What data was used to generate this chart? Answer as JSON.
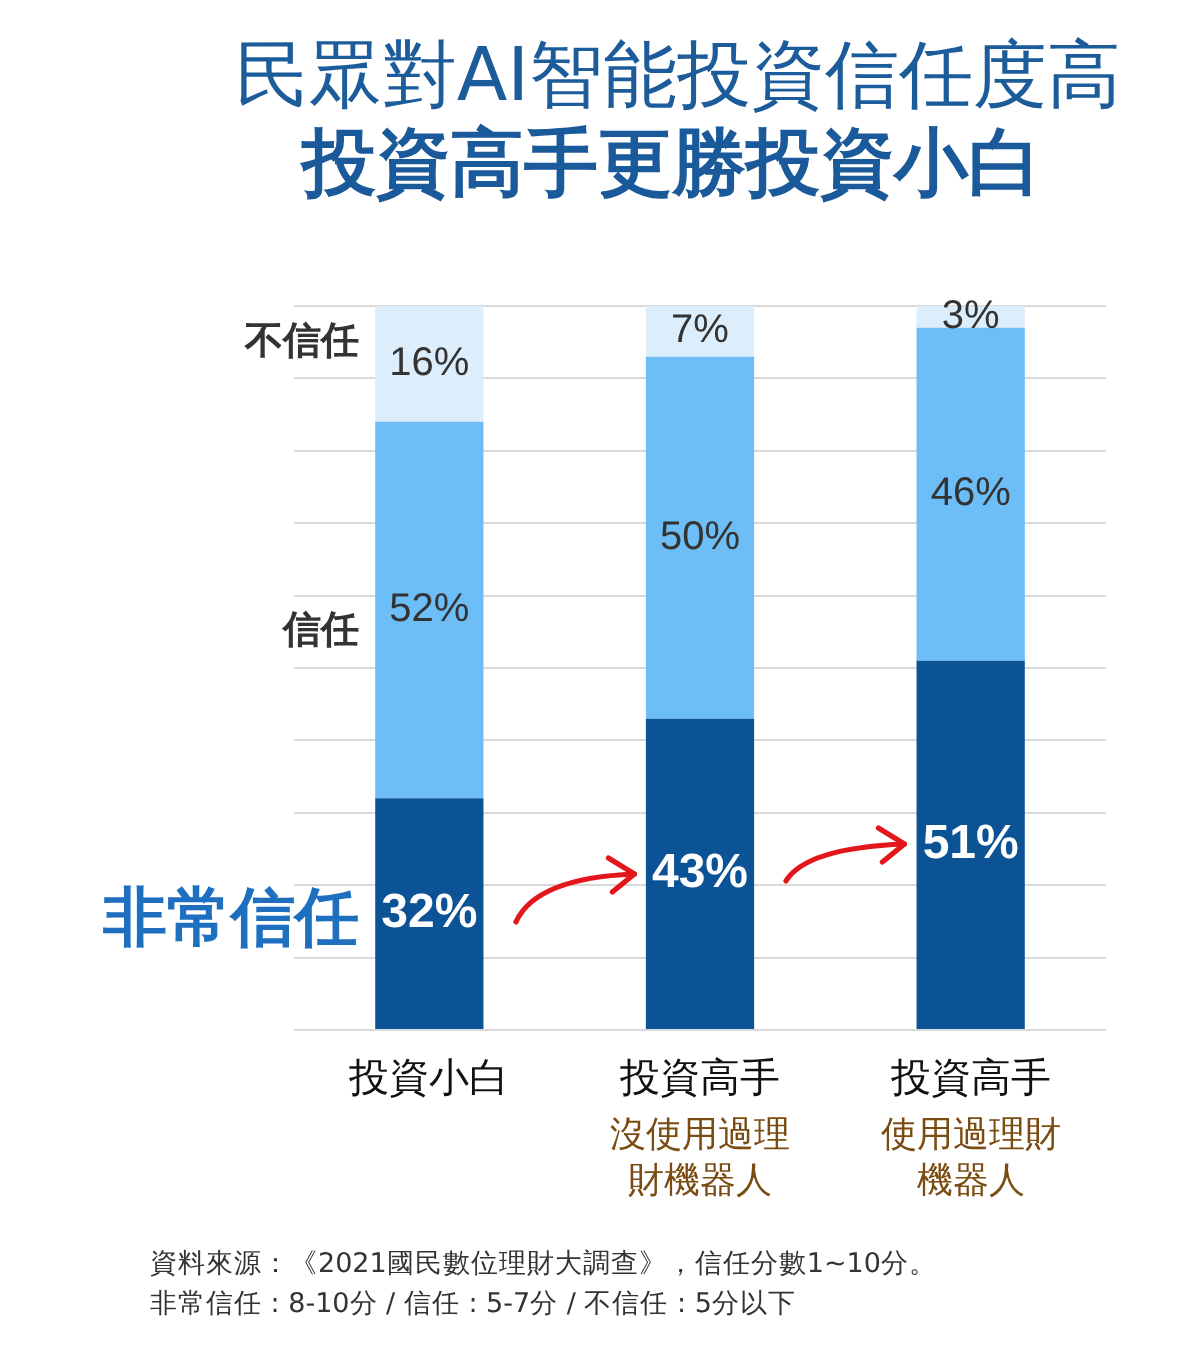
{
  "chart_data": {
    "type": "bar",
    "title": "民眾對AI智能投資信任度高",
    "subtitle": "投資高手更勝投資小白",
    "categories": [
      "投資小白",
      "投資高手沒使用過理財機器人",
      "投資高手使用過理財機器人"
    ],
    "stacked": true,
    "series": [
      {
        "name": "非常信任",
        "color": "#0b5394",
        "values": [
          32,
          43,
          51
        ],
        "value_labels": [
          "32%",
          "43%",
          "51%"
        ]
      },
      {
        "name": "信任",
        "color": "#6dbdf6",
        "values": [
          52,
          50,
          46
        ],
        "value_labels": [
          "52%",
          "50%",
          "46%"
        ]
      },
      {
        "name": "不信任",
        "color": "#dcedfc",
        "values": [
          16,
          7,
          3
        ],
        "value_labels": [
          "16%",
          "7%",
          "3%"
        ]
      }
    ],
    "ylim": [
      0,
      100
    ],
    "yticks": [
      {
        "value": 0,
        "label": null
      },
      {
        "value": 10,
        "label": null
      },
      {
        "value": 20,
        "label": null
      },
      {
        "value": 30,
        "label": null
      },
      {
        "value": 40,
        "label": null
      },
      {
        "value": 50,
        "label": null
      },
      {
        "value": 60,
        "label": null
      },
      {
        "value": 70,
        "label": null
      },
      {
        "value": 80,
        "label": null
      },
      {
        "value": 90,
        "label": null
      },
      {
        "value": 100,
        "label": null
      }
    ],
    "tick_labels": "x",
    "grid": "y",
    "annotations": [
      "資料來源：《2021國民數位理財大調查》，信任分數1~10分。",
      "非常信任 : 8-10分 / 信任 : 5-7分 / 不信任 : 5分以下"
    ]
  }
}
